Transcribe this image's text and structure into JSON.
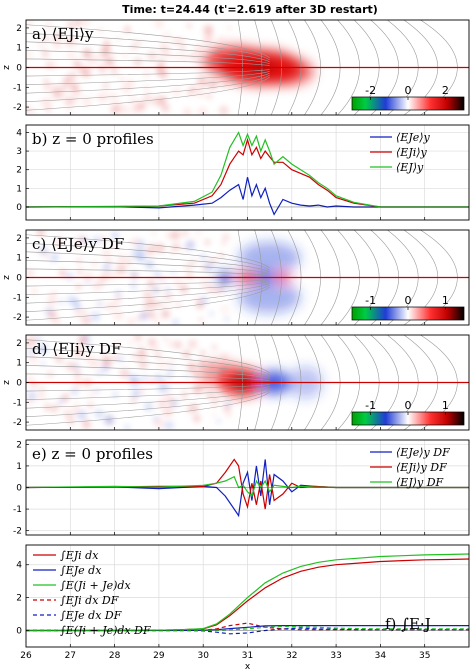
{
  "figure": {
    "title": "Time: t=24.44 (t'=2.619 after 3D restart)"
  },
  "colors": {
    "field_red": "#e00000",
    "field_blue": "#1f3cd6",
    "green": "#22c022",
    "red_line": "#cc0000",
    "blue_line": "#1020c0",
    "grid": "#dcdcdc",
    "fieldline": "#9a9a9a"
  },
  "chart_data": [
    {
      "id": "a",
      "type": "heatmap",
      "panel_label": "a) ⟨EJi⟩y",
      "ylabel": "z",
      "xlim": [
        26,
        36
      ],
      "ylim": [
        -2.4,
        2.4
      ],
      "yticks": [
        "2",
        "1",
        "0",
        "-1",
        "-2"
      ],
      "colorbar": {
        "ticks": [
          "-2",
          "0",
          "2"
        ],
        "range": [
          -3,
          3
        ]
      },
      "blobs": [
        {
          "x": 31.3,
          "z": 0,
          "sx": 0.9,
          "sz": 0.9,
          "v": 1.0,
          "c": "red"
        },
        {
          "x": 30.7,
          "z": 0.3,
          "sx": 0.7,
          "sz": 0.8,
          "v": 0.8,
          "c": "red"
        },
        {
          "x": 31.9,
          "z": -0.2,
          "sx": 0.6,
          "sz": 0.7,
          "v": 0.7,
          "c": "red"
        }
      ]
    },
    {
      "id": "b",
      "type": "line",
      "panel_label": "b) z = 0 profiles",
      "xlim": [
        26,
        36
      ],
      "ylim": [
        -0.7,
        4.4
      ],
      "yticks": [
        "4",
        "3",
        "2",
        "1",
        "0"
      ],
      "legend": [
        "⟨EJe⟩y",
        "⟨EJi⟩y",
        "⟨EJ⟩y"
      ],
      "legend_position": "top-right",
      "x": [
        26,
        28,
        29,
        29.8,
        30.2,
        30.4,
        30.6,
        30.8,
        30.9,
        31.0,
        31.1,
        31.2,
        31.3,
        31.4,
        31.5,
        31.6,
        31.8,
        32.0,
        32.2,
        32.4,
        32.6,
        32.8,
        33.0,
        33.4,
        34,
        36
      ],
      "series": [
        {
          "name": "⟨EJe⟩y",
          "color": "blue",
          "values": [
            0,
            0.02,
            -0.05,
            0.1,
            0.2,
            0.5,
            0.9,
            1.2,
            0.4,
            1.6,
            0.6,
            1.2,
            0.5,
            1.0,
            0.2,
            -0.4,
            0.4,
            0.2,
            0.1,
            0.05,
            0.1,
            0,
            0.05,
            0,
            0,
            0
          ]
        },
        {
          "name": "⟨EJi⟩y",
          "color": "red",
          "values": [
            0,
            0.02,
            0.05,
            0.2,
            0.6,
            1.2,
            2.3,
            3.0,
            2.8,
            3.6,
            2.8,
            3.2,
            2.6,
            3.0,
            2.7,
            2.4,
            2.4,
            2.0,
            1.8,
            1.6,
            1.2,
            0.9,
            0.5,
            0.2,
            0,
            0
          ]
        },
        {
          "name": "⟨EJ⟩y",
          "color": "green",
          "values": [
            0,
            0.03,
            0.05,
            0.3,
            0.8,
            1.7,
            3.2,
            4.0,
            3.3,
            3.9,
            3.3,
            3.8,
            3.0,
            3.6,
            3.0,
            2.3,
            2.7,
            2.3,
            2.0,
            1.7,
            1.3,
            1.0,
            0.6,
            0.25,
            0,
            0
          ]
        }
      ]
    },
    {
      "id": "c",
      "type": "heatmap",
      "panel_label": "c) ⟨EJe⟩y DF",
      "ylabel": "z",
      "xlim": [
        26,
        36
      ],
      "ylim": [
        -2.4,
        2.4
      ],
      "yticks": [
        "2",
        "1",
        "0",
        "-1",
        "-2"
      ],
      "colorbar": {
        "ticks": [
          "-1",
          "0",
          "1"
        ],
        "range": [
          -1.5,
          1.5
        ]
      },
      "blobs": [
        {
          "x": 31.0,
          "z": 0,
          "sx": 0.25,
          "sz": 0.25,
          "v": 1.0,
          "c": "red"
        },
        {
          "x": 30.5,
          "z": 0,
          "sx": 0.2,
          "sz": 0.3,
          "v": 0.9,
          "c": "blue"
        },
        {
          "x": 31.4,
          "z": 0,
          "sx": 0.2,
          "sz": 0.3,
          "v": 0.9,
          "c": "blue"
        },
        {
          "x": 31.8,
          "z": 0,
          "sx": 0.2,
          "sz": 0.25,
          "v": 0.8,
          "c": "red"
        },
        {
          "x": 31.5,
          "z": 1.0,
          "sx": 0.7,
          "sz": 0.8,
          "v": 0.45,
          "c": "blue"
        },
        {
          "x": 31.5,
          "z": -1.0,
          "sx": 0.7,
          "sz": 0.8,
          "v": 0.45,
          "c": "blue"
        }
      ]
    },
    {
      "id": "d",
      "type": "heatmap",
      "panel_label": "d) ⟨EJi⟩y DF",
      "ylabel": "z",
      "xlim": [
        26,
        36
      ],
      "ylim": [
        -2.4,
        2.4
      ],
      "yticks": [
        "2",
        "1",
        "0",
        "-1",
        "-2"
      ],
      "colorbar": {
        "ticks": [
          "-1",
          "0",
          "1"
        ],
        "range": [
          -1.5,
          1.5
        ]
      },
      "blobs": [
        {
          "x": 30.9,
          "z": 0,
          "sx": 0.5,
          "sz": 0.7,
          "v": 1.0,
          "c": "red"
        },
        {
          "x": 31.6,
          "z": 0,
          "sx": 0.35,
          "sz": 0.6,
          "v": 0.95,
          "c": "blue"
        },
        {
          "x": 30.4,
          "z": 0.4,
          "sx": 0.5,
          "sz": 0.7,
          "v": 0.45,
          "c": "red"
        },
        {
          "x": 32.3,
          "z": 0,
          "sx": 0.4,
          "sz": 0.8,
          "v": 0.35,
          "c": "blue"
        }
      ]
    },
    {
      "id": "e",
      "type": "line",
      "panel_label": "e) z = 0 profiles",
      "xlim": [
        26,
        36
      ],
      "ylim": [
        -2.2,
        2.2
      ],
      "yticks": [
        "2",
        "1",
        "0",
        "-1",
        "-2"
      ],
      "legend": [
        "⟨EJe⟩y DF",
        "⟨EJi⟩y DF",
        "⟨EJ⟩y DF"
      ],
      "legend_position": "top-right",
      "x": [
        26,
        28,
        29,
        30.0,
        30.3,
        30.5,
        30.7,
        30.8,
        30.9,
        31.0,
        31.1,
        31.2,
        31.3,
        31.4,
        31.5,
        31.6,
        31.8,
        32.0,
        32.2,
        32.5,
        33,
        34,
        36
      ],
      "series": [
        {
          "name": "⟨EJe⟩y DF",
          "color": "blue",
          "values": [
            0,
            0.03,
            -0.05,
            0.05,
            0.0,
            -0.4,
            -1.0,
            -1.3,
            0.2,
            0.7,
            -0.6,
            1.0,
            -0.4,
            1.3,
            -0.8,
            0.6,
            0.3,
            -0.2,
            0.1,
            0.05,
            0,
            0,
            0
          ]
        },
        {
          "name": "⟨EJi⟩y DF",
          "color": "red",
          "values": [
            0,
            0.03,
            0.05,
            0.05,
            0.2,
            0.7,
            1.3,
            1.0,
            -0.3,
            -0.9,
            0.2,
            -0.8,
            0.3,
            -1.0,
            0.6,
            -0.6,
            -0.3,
            0.2,
            0.0,
            0.05,
            0,
            0,
            0
          ]
        },
        {
          "name": "⟨EJ⟩y DF",
          "color": "green",
          "values": [
            0,
            0.05,
            0.02,
            0.1,
            0.2,
            0.3,
            0.5,
            0.0,
            0.1,
            -0.2,
            -0.4,
            0.3,
            0.0,
            0.3,
            -0.2,
            0.1,
            0.05,
            0.0,
            0.05,
            0.02,
            0,
            0,
            0
          ]
        }
      ]
    },
    {
      "id": "f",
      "type": "line",
      "panel_label": "f) ∫E·J",
      "xlabel": "x",
      "xlim": [
        26,
        36
      ],
      "ylim": [
        -1.0,
        5.2
      ],
      "xticks": [
        "26",
        "27",
        "28",
        "29",
        "30",
        "31",
        "32",
        "33",
        "34",
        "35"
      ],
      "yticks": [
        "4",
        "2",
        "0"
      ],
      "legend": [
        "∫EJi dx",
        "∫EJe dx",
        "∫E(Ji + Je)dx",
        "∫EJi dx DF",
        "∫EJe dx DF",
        "∫E(Ji + Je)dx DF"
      ],
      "legend_position": "left",
      "x": [
        26,
        28,
        29,
        29.5,
        30.0,
        30.3,
        30.6,
        31.0,
        31.4,
        31.8,
        32.2,
        32.6,
        33,
        33.5,
        34,
        34.5,
        35,
        35.5,
        36
      ],
      "series": [
        {
          "name": "∫EJi dx",
          "color": "red",
          "dash": false,
          "values": [
            0,
            0,
            0.02,
            0.05,
            0.1,
            0.35,
            0.9,
            1.8,
            2.6,
            3.2,
            3.6,
            3.85,
            4.0,
            4.1,
            4.2,
            4.25,
            4.3,
            4.32,
            4.35
          ]
        },
        {
          "name": "∫EJe dx",
          "color": "blue",
          "dash": false,
          "values": [
            0,
            0,
            0,
            0,
            0.02,
            0.05,
            0.12,
            0.2,
            0.28,
            0.3,
            0.3,
            0.3,
            0.3,
            0.3,
            0.3,
            0.3,
            0.3,
            0.3,
            0.3
          ]
        },
        {
          "name": "∫E(Ji + Je)dx",
          "color": "green",
          "dash": false,
          "values": [
            0,
            0,
            0.02,
            0.05,
            0.12,
            0.4,
            1.0,
            2.0,
            2.9,
            3.5,
            3.9,
            4.15,
            4.3,
            4.4,
            4.5,
            4.55,
            4.6,
            4.62,
            4.65
          ]
        },
        {
          "name": "∫EJi dx DF",
          "color": "red",
          "dash": true,
          "values": [
            0,
            0,
            0,
            0,
            0.02,
            0.1,
            0.3,
            0.45,
            0.2,
            0.1,
            0.05,
            0.05,
            0.05,
            0.05,
            0.05,
            0.05,
            0.05,
            0.05,
            0.05
          ]
        },
        {
          "name": "∫EJe dx DF",
          "color": "blue",
          "dash": true,
          "values": [
            0,
            0,
            0,
            0,
            -0.02,
            -0.1,
            -0.2,
            -0.15,
            0.0,
            0.1,
            0.15,
            0.1,
            0.08,
            0.05,
            0.05,
            0.05,
            0.05,
            0.05,
            0.05
          ]
        },
        {
          "name": "∫E(Ji + Je)dx DF",
          "color": "green",
          "dash": true,
          "values": [
            0,
            0,
            0,
            0,
            0,
            0.02,
            0.05,
            0.1,
            0.2,
            0.25,
            0.22,
            0.2,
            0.15,
            0.12,
            0.1,
            0.1,
            0.1,
            0.1,
            0.1
          ]
        }
      ]
    }
  ]
}
